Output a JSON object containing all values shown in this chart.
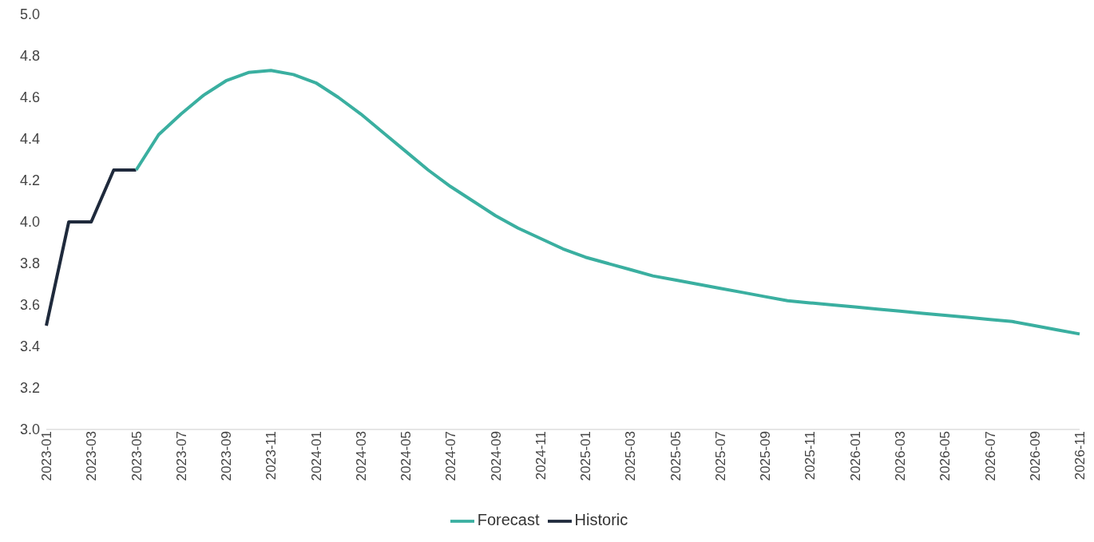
{
  "chart_data": {
    "type": "line",
    "categories": [
      "2023-01",
      null,
      "2023-03",
      null,
      "2023-05",
      null,
      "2023-07",
      null,
      "2023-09",
      null,
      "2023-11",
      null,
      "2024-01",
      null,
      "2024-03",
      null,
      "2024-05",
      null,
      "2024-07",
      null,
      "2024-09",
      null,
      "2024-11",
      null,
      "2025-01",
      null,
      "2025-03",
      null,
      "2025-05",
      null,
      "2025-07",
      null,
      "2025-09",
      null,
      "2025-11",
      null,
      "2026-01",
      null,
      "2026-03",
      null,
      "2026-05",
      null,
      "2026-07",
      null,
      "2026-09",
      null,
      "2026-11"
    ],
    "series": [
      {
        "name": "Historic",
        "color": "#1f2a3c",
        "values": [
          3.5,
          4.0,
          4.0,
          4.25,
          4.25,
          null,
          null,
          null,
          null,
          null,
          null,
          null,
          null,
          null,
          null,
          null,
          null,
          null,
          null,
          null,
          null,
          null,
          null,
          null,
          null,
          null,
          null,
          null,
          null,
          null,
          null,
          null,
          null,
          null,
          null,
          null,
          null,
          null,
          null,
          null,
          null,
          null,
          null,
          null,
          null,
          null,
          null
        ]
      },
      {
        "name": "Forecast",
        "color": "#3aafa0",
        "values": [
          null,
          null,
          null,
          null,
          4.25,
          4.42,
          4.52,
          4.61,
          4.68,
          4.72,
          4.73,
          4.71,
          4.67,
          4.6,
          4.52,
          4.43,
          4.34,
          4.25,
          4.17,
          4.1,
          4.03,
          3.97,
          3.92,
          3.87,
          3.83,
          3.8,
          3.77,
          3.74,
          3.72,
          3.7,
          3.68,
          3.66,
          3.64,
          3.62,
          3.61,
          3.6,
          3.59,
          3.58,
          3.57,
          3.56,
          3.55,
          3.54,
          3.53,
          3.52,
          3.5,
          3.48,
          3.46
        ]
      }
    ],
    "ylim": [
      3.0,
      5.0
    ],
    "yticks": [
      {
        "value": 3,
        "label": "3.0"
      },
      {
        "value": 3.2,
        "label": "3.2"
      },
      {
        "value": 3.4,
        "label": "3.4"
      },
      {
        "value": 3.6,
        "label": "3.6"
      },
      {
        "value": 3.8,
        "label": "3.8"
      },
      {
        "value": 4,
        "label": "4.0"
      },
      {
        "value": 4.2,
        "label": "4.2"
      },
      {
        "value": 4.4,
        "label": "4.4"
      },
      {
        "value": 4.6,
        "label": "4.6"
      },
      {
        "value": 4.8,
        "label": "4.8"
      },
      {
        "value": 5,
        "label": "5.0"
      }
    ],
    "grid": false,
    "legend": "bottom",
    "marker": "none",
    "line_style": "solid"
  }
}
